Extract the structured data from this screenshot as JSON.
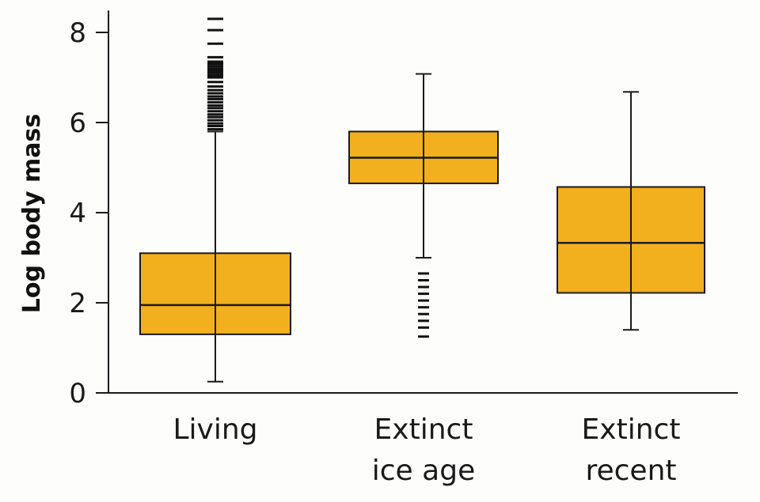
{
  "chart_data": {
    "type": "box",
    "xlabel": "",
    "ylabel": "Log body mass",
    "ylim": [
      0,
      8.4
    ],
    "yticks": [
      0,
      2,
      4,
      6,
      8
    ],
    "y_tick_labels": [
      "0",
      "2",
      "4",
      "6",
      "8"
    ],
    "grid": false,
    "legend": "none",
    "box_fill": "#f2b01e",
    "box_edge": "#1a1a1a",
    "categories": [
      {
        "label_lines": [
          "Living"
        ]
      },
      {
        "label_lines": [
          "Extinct",
          "ice age"
        ]
      },
      {
        "label_lines": [
          "Extinct",
          "recent"
        ]
      }
    ],
    "boxes": [
      {
        "whisker_low": 0.25,
        "q1": 1.3,
        "median": 1.95,
        "q3": 3.1,
        "whisker_high": 5.8,
        "outliers": [
          5.85,
          5.92,
          5.98,
          6.05,
          6.12,
          6.18,
          6.25,
          6.32,
          6.38,
          6.45,
          6.52,
          6.58,
          6.65,
          6.72,
          6.8,
          6.9,
          7.0,
          7.05,
          7.1,
          7.15,
          7.2,
          7.25,
          7.3,
          7.35,
          7.45,
          7.75,
          8.05,
          8.3
        ]
      },
      {
        "whisker_low": 3.0,
        "q1": 4.65,
        "median": 5.22,
        "q3": 5.8,
        "whisker_high": 7.08,
        "outliers": [
          1.25,
          1.45,
          1.6,
          1.75,
          1.9,
          2.05,
          2.2,
          2.35,
          2.5,
          2.65
        ]
      },
      {
        "whisker_low": 1.4,
        "q1": 2.22,
        "median": 3.33,
        "q3": 4.57,
        "whisker_high": 6.68,
        "outliers": []
      }
    ]
  }
}
